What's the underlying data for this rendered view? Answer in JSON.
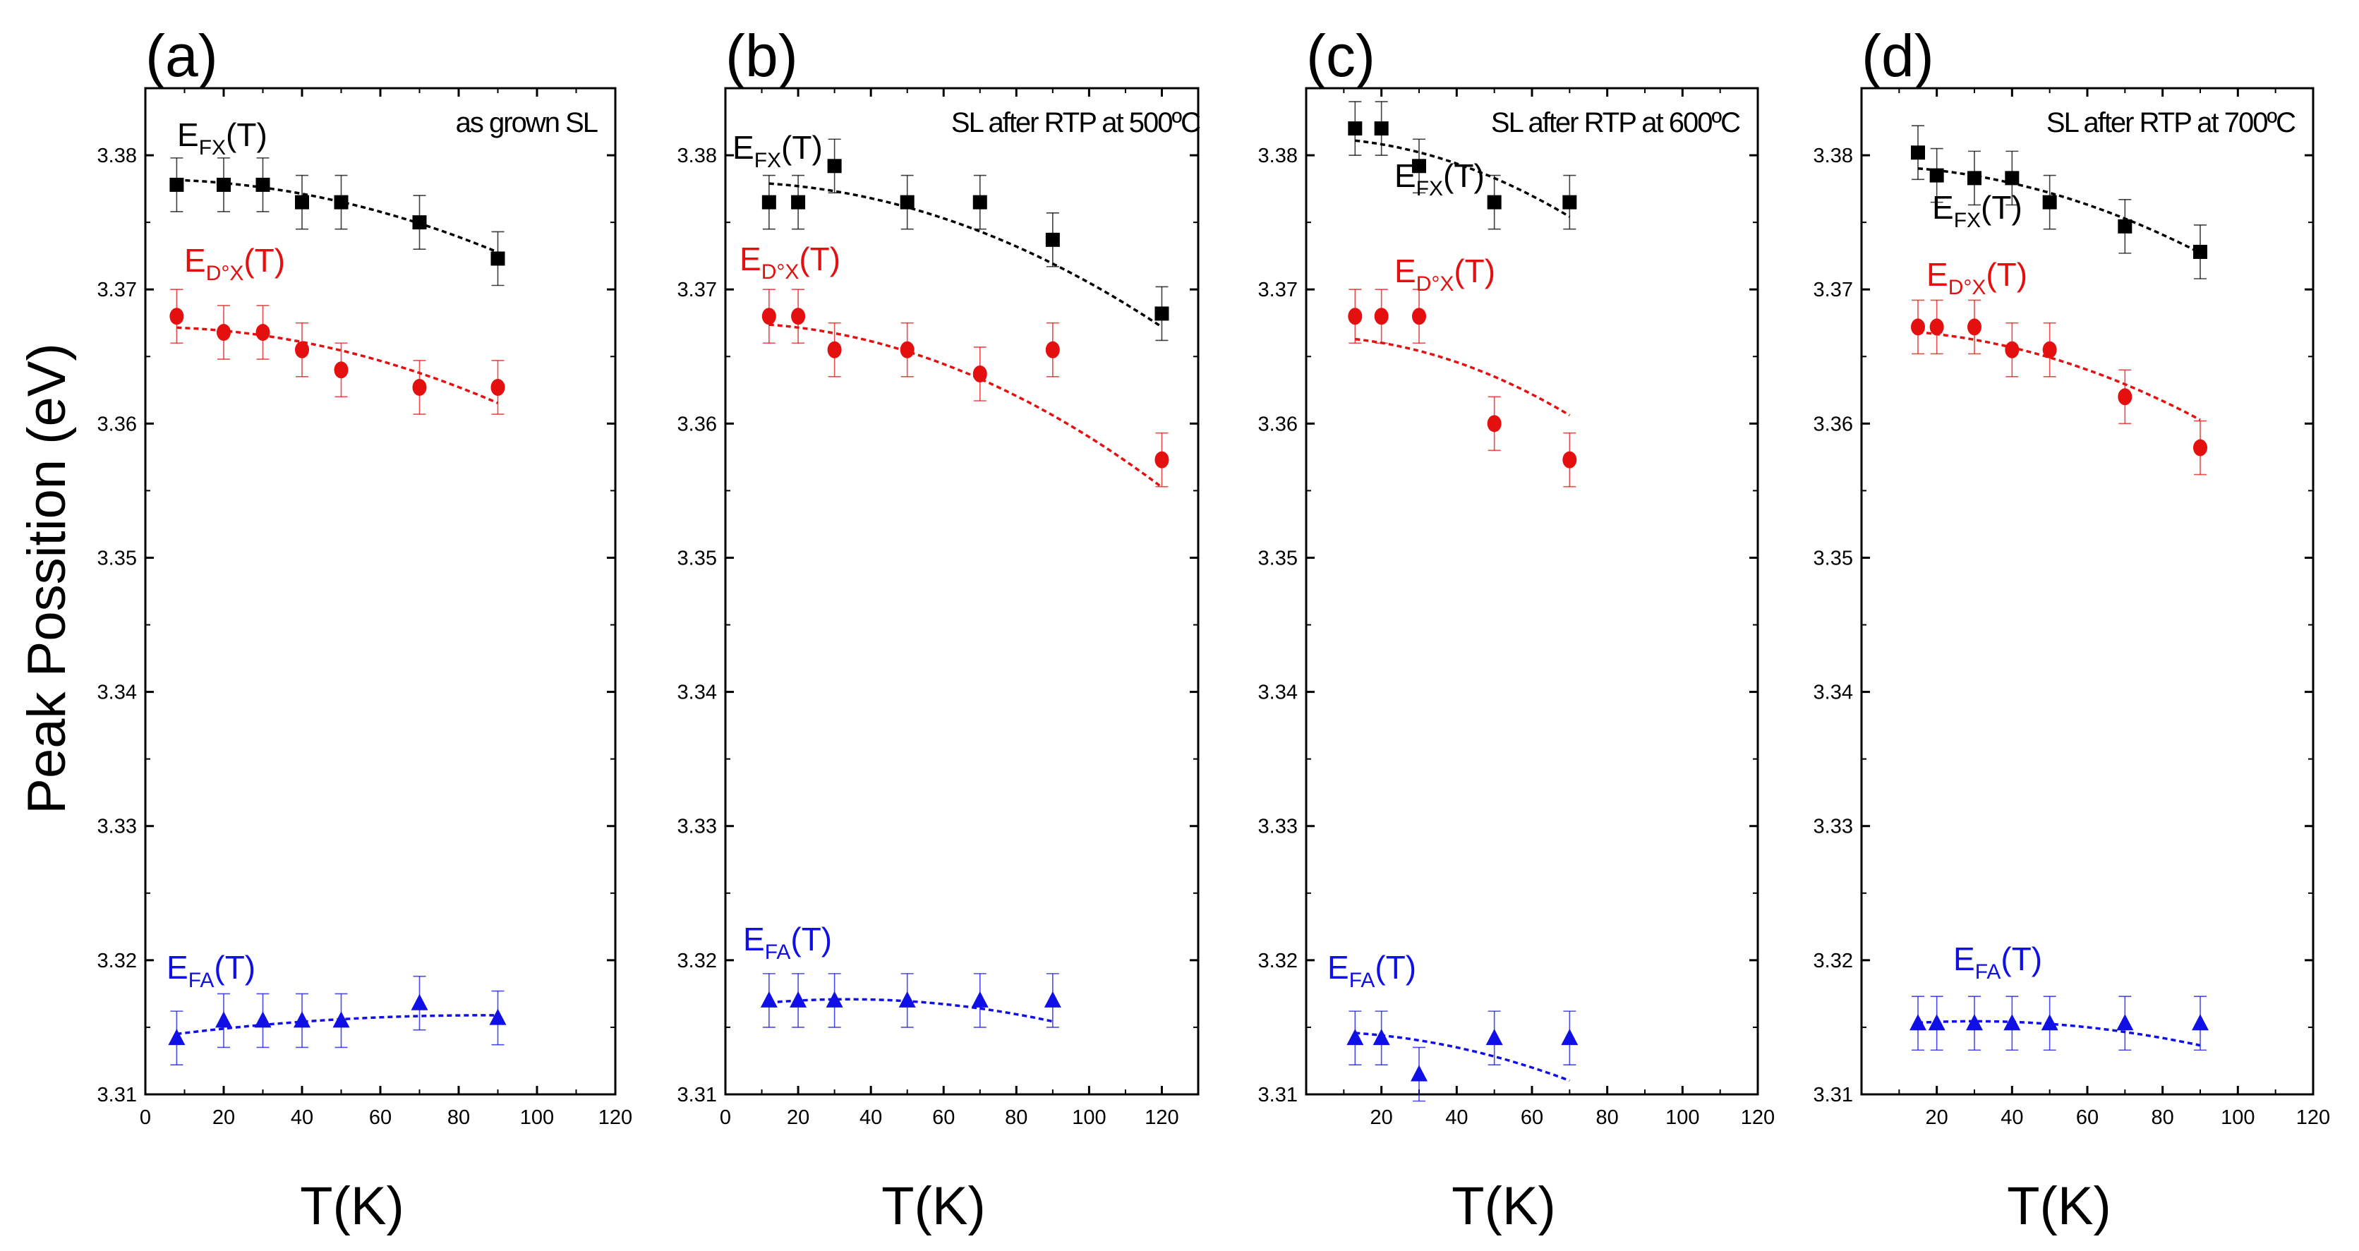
{
  "figure": {
    "ylabel": "Peak Possition (eV)"
  },
  "colors": {
    "FX": "#000000",
    "DX": "#e41010",
    "FA": "#1010e6",
    "axis": "#000000"
  },
  "chart_data": [
    {
      "type": "scatter",
      "panel": "(a)",
      "condition": "as grown SL",
      "xlabel": "T(K)",
      "xlim": [
        0,
        120
      ],
      "xticks": [
        0,
        20,
        40,
        60,
        80,
        100,
        120
      ],
      "ylim": [
        3.31,
        3.385
      ],
      "yticks": [
        3.31,
        3.32,
        3.33,
        3.34,
        3.35,
        3.36,
        3.37,
        3.38
      ],
      "series": [
        {
          "key": "FX",
          "name": "E",
          "sub": "FX",
          "suffix": "(T)",
          "marker": "square",
          "x": [
            8,
            20,
            30,
            40,
            50,
            70,
            90
          ],
          "y": [
            3.3778,
            3.3778,
            3.3778,
            3.3765,
            3.3765,
            3.375,
            3.3723
          ],
          "err": 0.002,
          "fit": {
            "x0": 8,
            "x1": 90,
            "a": 3.3782,
            "b": 0.0,
            "c": -6.7e-07
          }
        },
        {
          "key": "DX",
          "name": "E",
          "sub": "D°X",
          "suffix": "(T)",
          "marker": "circle",
          "x": [
            8,
            20,
            30,
            40,
            50,
            70,
            90
          ],
          "y": [
            3.368,
            3.3668,
            3.3668,
            3.3655,
            3.364,
            3.3627,
            3.3627
          ],
          "err": 0.002,
          "fit": {
            "x0": 8,
            "x1": 90,
            "a": 3.3672,
            "b": 0.0,
            "c": -7e-07
          }
        },
        {
          "key": "FA",
          "name": "E",
          "sub": "FA",
          "suffix": "(T)",
          "marker": "triangle",
          "x": [
            8,
            20,
            30,
            40,
            50,
            70,
            90
          ],
          "y": [
            3.3142,
            3.3155,
            3.3155,
            3.3155,
            3.3155,
            3.3168,
            3.3157
          ],
          "err": 0.002,
          "fit": {
            "x0": 8,
            "x1": 90,
            "a": 3.3142,
            "b": 3.95e-05,
            "c": -2.3e-07
          }
        }
      ]
    },
    {
      "type": "scatter",
      "panel": "(b)",
      "condition": "SL after RTP at 500ºC",
      "xlabel": "T(K)",
      "xlim": [
        0,
        130
      ],
      "xticks": [
        0,
        20,
        40,
        60,
        80,
        100,
        120
      ],
      "ylim": [
        3.31,
        3.385
      ],
      "yticks": [
        3.31,
        3.32,
        3.33,
        3.34,
        3.35,
        3.36,
        3.37,
        3.38
      ],
      "series": [
        {
          "key": "FX",
          "name": "E",
          "sub": "FX",
          "suffix": "(T)",
          "marker": "square",
          "x": [
            12,
            20,
            30,
            50,
            70,
            90,
            120
          ],
          "y": [
            3.3765,
            3.3765,
            3.3792,
            3.3765,
            3.3765,
            3.3737,
            3.3682
          ],
          "err": 0.002,
          "fit": {
            "x0": 12,
            "x1": 120,
            "a": 3.378,
            "b": 0.0,
            "c": -7.5e-07
          }
        },
        {
          "key": "DX",
          "name": "E",
          "sub": "D°X",
          "suffix": "(T)",
          "marker": "circle",
          "x": [
            12,
            20,
            30,
            50,
            70,
            90,
            120
          ],
          "y": [
            3.368,
            3.368,
            3.3655,
            3.3655,
            3.3637,
            3.3655,
            3.3573
          ],
          "err": 0.002,
          "fit": {
            "x0": 12,
            "x1": 120,
            "a": 3.3675,
            "b": 0.0,
            "c": -8.5e-07
          }
        },
        {
          "key": "FA",
          "name": "E",
          "sub": "FA",
          "suffix": "(T)",
          "marker": "triangle",
          "x": [
            12,
            20,
            30,
            50,
            70,
            90
          ],
          "y": [
            3.317,
            3.317,
            3.317,
            3.317,
            3.317,
            3.317
          ],
          "err": 0.002,
          "fit": {
            "x0": 12,
            "x1": 90,
            "a": 3.3165,
            "b": 3.5e-05,
            "c": -5.2e-07
          }
        }
      ]
    },
    {
      "type": "scatter",
      "panel": "(c)",
      "condition": "SL after RTP at 600ºC",
      "xlabel": "T(K)",
      "xlim": [
        0,
        120
      ],
      "xticks": [
        20,
        40,
        60,
        80,
        100,
        120
      ],
      "ylim": [
        3.31,
        3.385
      ],
      "yticks": [
        3.31,
        3.32,
        3.33,
        3.34,
        3.35,
        3.36,
        3.37,
        3.38
      ],
      "series": [
        {
          "key": "FX",
          "name": "E",
          "sub": "FX",
          "suffix": "(T)",
          "marker": "square",
          "x": [
            13,
            20,
            30,
            50,
            70
          ],
          "y": [
            3.382,
            3.382,
            3.3792,
            3.3765,
            3.3765
          ],
          "err": 0.002,
          "fit": {
            "x0": 13,
            "x1": 70,
            "a": 3.3813,
            "b": 0.0,
            "c": -1.2e-06
          }
        },
        {
          "key": "DX",
          "name": "E",
          "sub": "D°X",
          "suffix": "(T)",
          "marker": "circle",
          "x": [
            13,
            20,
            30,
            50,
            70
          ],
          "y": [
            3.368,
            3.368,
            3.368,
            3.36,
            3.3573
          ],
          "err": 0.002,
          "fit": {
            "x0": 13,
            "x1": 70,
            "a": 3.3665,
            "b": 0.0,
            "c": -1.2e-06
          }
        },
        {
          "key": "FA",
          "name": "E",
          "sub": "FA",
          "suffix": "(T)",
          "marker": "triangle",
          "x": [
            13,
            20,
            30,
            50,
            70
          ],
          "y": [
            3.3142,
            3.3142,
            3.3115,
            3.3142,
            3.3142
          ],
          "err": 0.002,
          "fit": {
            "x0": 13,
            "x1": 70,
            "a": 3.3147,
            "b": 0.0,
            "c": -7.5e-07
          }
        }
      ]
    },
    {
      "type": "scatter",
      "panel": "(d)",
      "condition": "SL after RTP at 700ºC",
      "xlabel": "T(K)",
      "xlim": [
        0,
        120
      ],
      "xticks": [
        20,
        40,
        60,
        80,
        100,
        120
      ],
      "ylim": [
        3.31,
        3.385
      ],
      "yticks": [
        3.31,
        3.32,
        3.33,
        3.34,
        3.35,
        3.36,
        3.37,
        3.38
      ],
      "series": [
        {
          "key": "FX",
          "name": "E",
          "sub": "FX",
          "suffix": "(T)",
          "marker": "square",
          "x": [
            15,
            20,
            30,
            40,
            50,
            70,
            90
          ],
          "y": [
            3.3802,
            3.3785,
            3.3783,
            3.3783,
            3.3765,
            3.3747,
            3.3728
          ],
          "err": 0.002,
          "fit": {
            "x0": 15,
            "x1": 90,
            "a": 3.3792,
            "b": 0.0,
            "c": -8e-07
          }
        },
        {
          "key": "DX",
          "name": "E",
          "sub": "D°X",
          "suffix": "(T)",
          "marker": "circle",
          "x": [
            15,
            20,
            30,
            40,
            50,
            70,
            90
          ],
          "y": [
            3.3672,
            3.3672,
            3.3672,
            3.3655,
            3.3655,
            3.362,
            3.3582
          ],
          "err": 0.002,
          "fit": {
            "x0": 15,
            "x1": 90,
            "a": 3.367,
            "b": 0.0,
            "c": -8.3e-07
          }
        },
        {
          "key": "FA",
          "name": "E",
          "sub": "FA",
          "suffix": "(T)",
          "marker": "triangle",
          "x": [
            15,
            20,
            30,
            40,
            50,
            70,
            90
          ],
          "y": [
            3.3153,
            3.3153,
            3.3153,
            3.3153,
            3.3153,
            3.3153,
            3.3153
          ],
          "err": 0.002,
          "fit": {
            "x0": 15,
            "x1": 90,
            "a": 3.315,
            "b": 3e-05,
            "c": -5e-07
          }
        }
      ]
    }
  ]
}
